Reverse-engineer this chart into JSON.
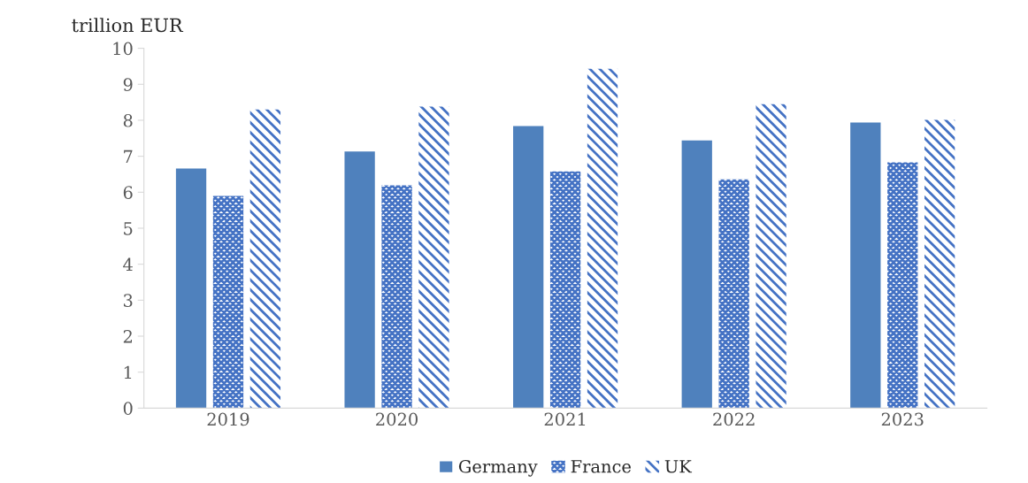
{
  "chart_data": {
    "type": "bar",
    "ylabel": "trillion EUR",
    "categories": [
      "2019",
      "2020",
      "2021",
      "2022",
      "2023"
    ],
    "series": [
      {
        "name": "Germany",
        "color": "#4f81bd",
        "values": [
          6.66,
          7.13,
          7.84,
          7.44,
          7.94
        ]
      },
      {
        "name": "France",
        "color": "#4472c4",
        "values": [
          5.9,
          6.19,
          6.58,
          6.36,
          6.83
        ]
      },
      {
        "name": "UK",
        "color": "#4472c4",
        "values": [
          8.3,
          8.38,
          9.43,
          8.45,
          8.01
        ]
      }
    ],
    "ylim": [
      0,
      10
    ],
    "yticks": [
      0,
      1,
      2,
      3,
      4,
      5,
      6,
      7,
      8,
      9,
      10
    ],
    "grid": false,
    "legend": "bottom"
  }
}
